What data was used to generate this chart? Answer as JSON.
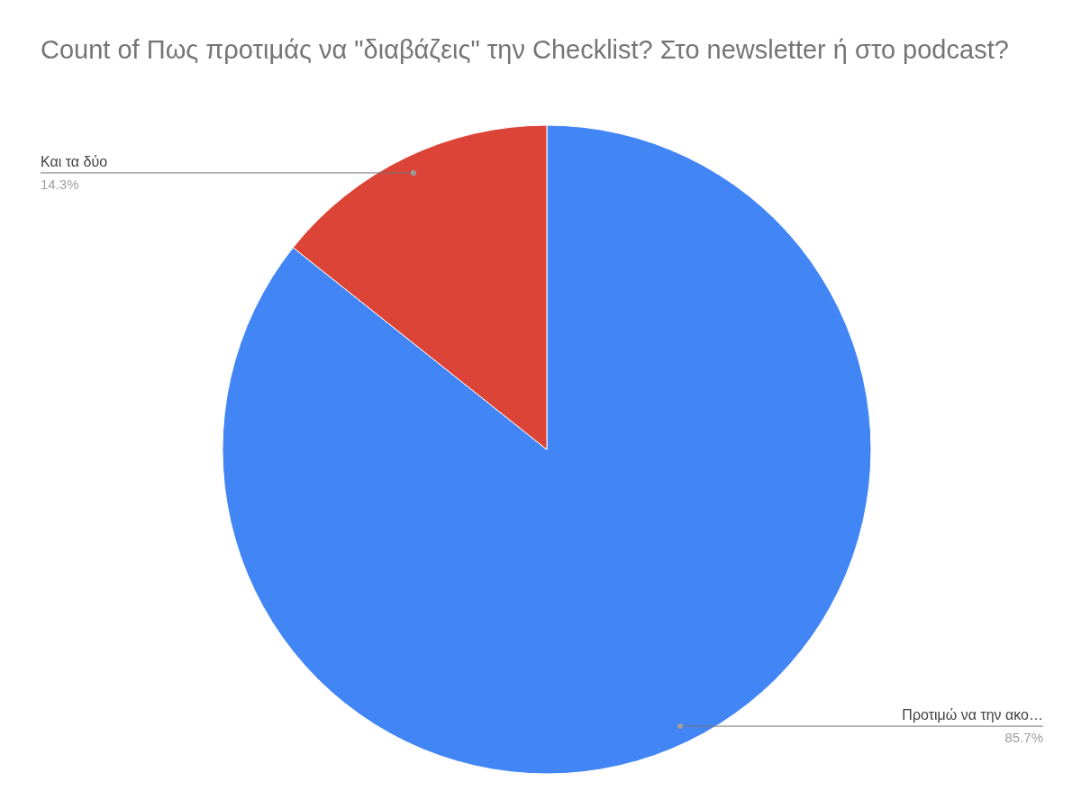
{
  "chart_data": {
    "type": "pie",
    "title": "Count of Πως προτιμάς να \"διαβάζεις\" την Checklist? Στο newsletter ή στο podcast?",
    "categories": [
      "Προτιμώ να την ακο…",
      "Και τα δύο"
    ],
    "values": [
      85.7,
      14.3
    ],
    "colors": [
      "#4285f4",
      "#db4437"
    ],
    "value_labels": [
      "85.7%",
      "14.3%"
    ]
  }
}
